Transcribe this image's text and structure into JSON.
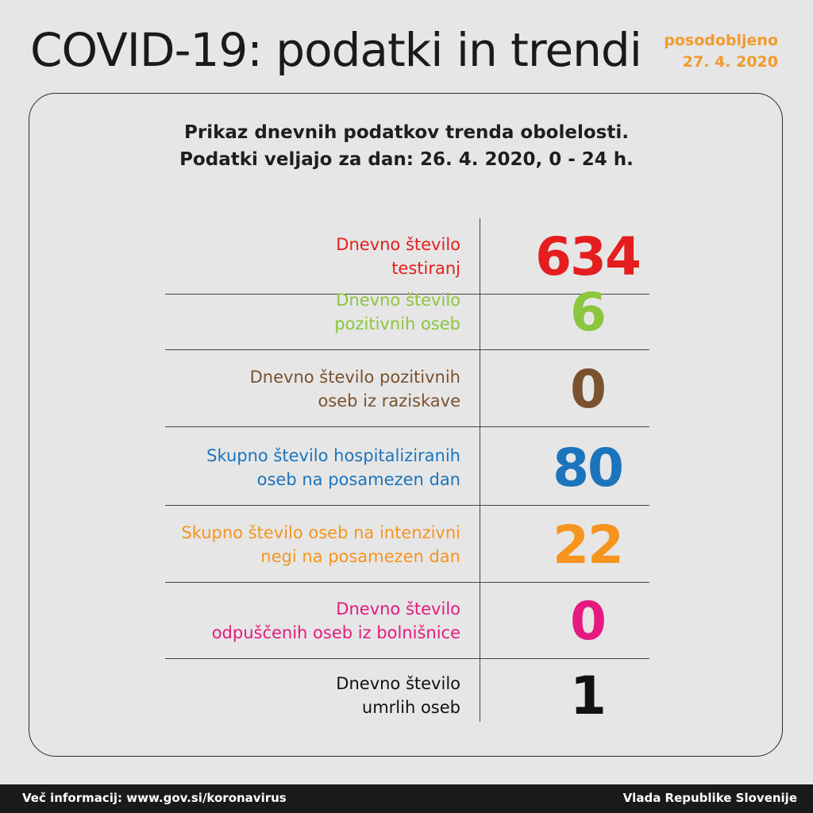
{
  "header": {
    "title": "COVID-19: podatki in trendi",
    "updated_line1": "posodobljeno",
    "updated_line2": "27. 4. 2020"
  },
  "card": {
    "subtitle_line1": "Prikaz dnevnih podatkov trenda obolelosti.",
    "subtitle_line2": "Podatki veljajo za dan: 26. 4. 2020, 0 - 24 h."
  },
  "rows": [
    {
      "label_line1": "Dnevno število",
      "label_line2": "testiranj",
      "value": "634",
      "color": "#e41e1e"
    },
    {
      "label_line1": "Dnevno število",
      "label_line2": "pozitivnih oseb",
      "value": "6",
      "color": "#8cc63e"
    },
    {
      "label_line1": "Dnevno število pozitivnih",
      "label_line2": "oseb iz raziskave",
      "value": "0",
      "color": "#7b5230"
    },
    {
      "label_line1": "Skupno število hospitaliziranih",
      "label_line2": "oseb na posamezen dan",
      "value": "80",
      "color": "#1c75bc"
    },
    {
      "label_line1": "Skupno število oseb na intenzivni",
      "label_line2": "negi na posamezen dan",
      "value": "22",
      "color": "#f7941d"
    },
    {
      "label_line1": "Dnevno število",
      "label_line2": "odpuščenih oseb iz bolnišnice",
      "value": "0",
      "color": "#e6197e"
    },
    {
      "label_line1": "Dnevno število",
      "label_line2": "umrlih oseb",
      "value": "1",
      "color": "#111111"
    }
  ],
  "footer": {
    "left_text": "Več informacij: www.gov.si/koronavirus",
    "right_text": "Vlada Republike Slovenije"
  }
}
